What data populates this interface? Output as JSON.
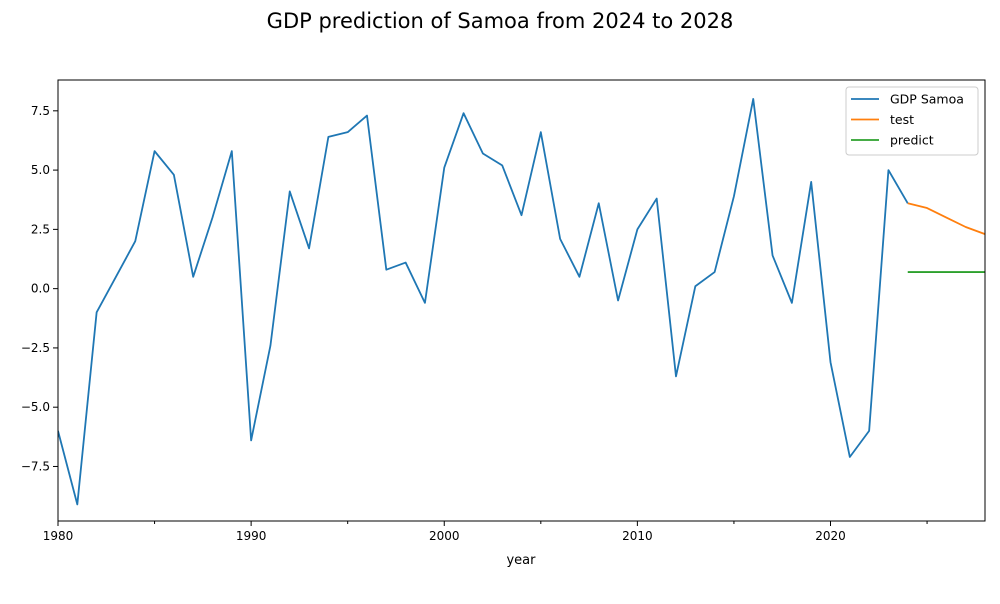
{
  "chart_data": {
    "type": "line",
    "title": "GDP prediction of Samoa from 2024 to 2028",
    "xlabel": "year",
    "ylabel": "",
    "xlim": [
      1980,
      2028
    ],
    "ylim": [
      -9.8,
      8.8
    ],
    "x_ticks": [
      {
        "value": 1980,
        "label": "1980"
      },
      {
        "value": 1990,
        "label": "1990"
      },
      {
        "value": 2000,
        "label": "2000"
      },
      {
        "value": 2010,
        "label": "2010"
      },
      {
        "value": 2020,
        "label": "2020"
      }
    ],
    "x_minor_ticks": [
      1985,
      1995,
      2005,
      2015,
      2025
    ],
    "y_ticks": [
      {
        "value": 7.5,
        "label": "7.5"
      },
      {
        "value": 5.0,
        "label": "5.0"
      },
      {
        "value": 2.5,
        "label": "2.5"
      },
      {
        "value": 0.0,
        "label": "0.0"
      },
      {
        "value": -2.5,
        "label": "−2.5"
      },
      {
        "value": -5.0,
        "label": "−5.0"
      },
      {
        "value": -7.5,
        "label": "−7.5"
      }
    ],
    "grid": false,
    "legend_position": "top-right",
    "series": [
      {
        "name": "GDP Samoa",
        "color": "#1f77b4",
        "x": [
          1980,
          1981,
          1982,
          1983,
          1984,
          1985,
          1986,
          1987,
          1988,
          1989,
          1990,
          1991,
          1992,
          1993,
          1994,
          1995,
          1996,
          1997,
          1998,
          1999,
          2000,
          2001,
          2002,
          2003,
          2004,
          2005,
          2006,
          2007,
          2008,
          2009,
          2010,
          2011,
          2012,
          2013,
          2014,
          2015,
          2016,
          2017,
          2018,
          2019,
          2020,
          2021,
          2022,
          2023,
          2024
        ],
        "values": [
          -6.0,
          -9.1,
          -1.0,
          0.5,
          2.0,
          5.8,
          4.8,
          0.5,
          3.0,
          5.8,
          -6.4,
          -2.4,
          4.1,
          1.7,
          6.4,
          6.6,
          7.3,
          0.8,
          1.1,
          -0.6,
          5.1,
          7.4,
          5.7,
          5.2,
          3.1,
          6.6,
          2.1,
          0.5,
          3.6,
          -0.5,
          2.5,
          3.8,
          -3.7,
          0.1,
          0.7,
          3.9,
          8.0,
          1.4,
          -0.6,
          4.5,
          -3.1,
          -7.1,
          -6.0,
          5.0,
          3.6
        ]
      },
      {
        "name": "test",
        "color": "#ff7f0e",
        "x": [
          2024,
          2025,
          2026,
          2027,
          2028
        ],
        "values": [
          3.6,
          3.4,
          3.0,
          2.6,
          2.3
        ]
      },
      {
        "name": "predict",
        "color": "#2ca02c",
        "x": [
          2024,
          2025,
          2026,
          2027,
          2028
        ],
        "values": [
          0.7,
          0.7,
          0.7,
          0.7,
          0.7
        ]
      }
    ]
  }
}
